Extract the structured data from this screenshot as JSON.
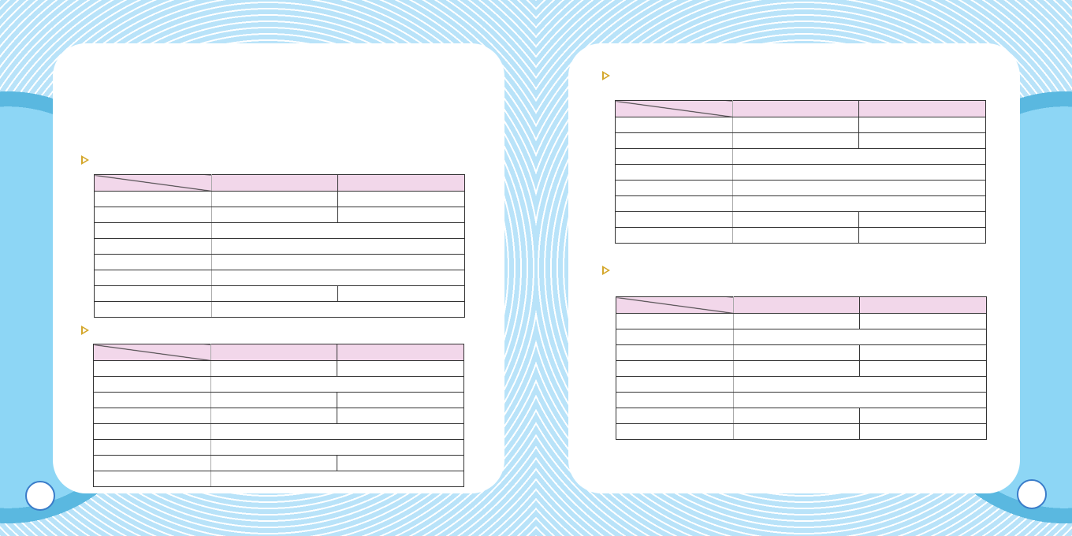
{
  "colors": {
    "accent": "#d4a72c",
    "header_fill": "#f2d7ea",
    "page_circle": "#3a7cc9",
    "background": "#8dd6f5"
  },
  "tables": [
    {
      "rows": [
        "split",
        "split",
        "merged",
        "merged",
        "merged",
        "merged",
        "split",
        "merged"
      ]
    },
    {
      "rows": [
        "split",
        "merged",
        "split",
        "split",
        "merged",
        "merged",
        "split",
        "merged"
      ]
    },
    {
      "rows": [
        "split",
        "split",
        "merged",
        "merged",
        "merged",
        "merged",
        "split",
        "split"
      ]
    },
    {
      "rows": [
        "split",
        "merged",
        "split",
        "split",
        "merged",
        "merged",
        "split",
        "split"
      ]
    }
  ],
  "icons": {
    "section_marker": "triangle-right-outline-icon"
  }
}
